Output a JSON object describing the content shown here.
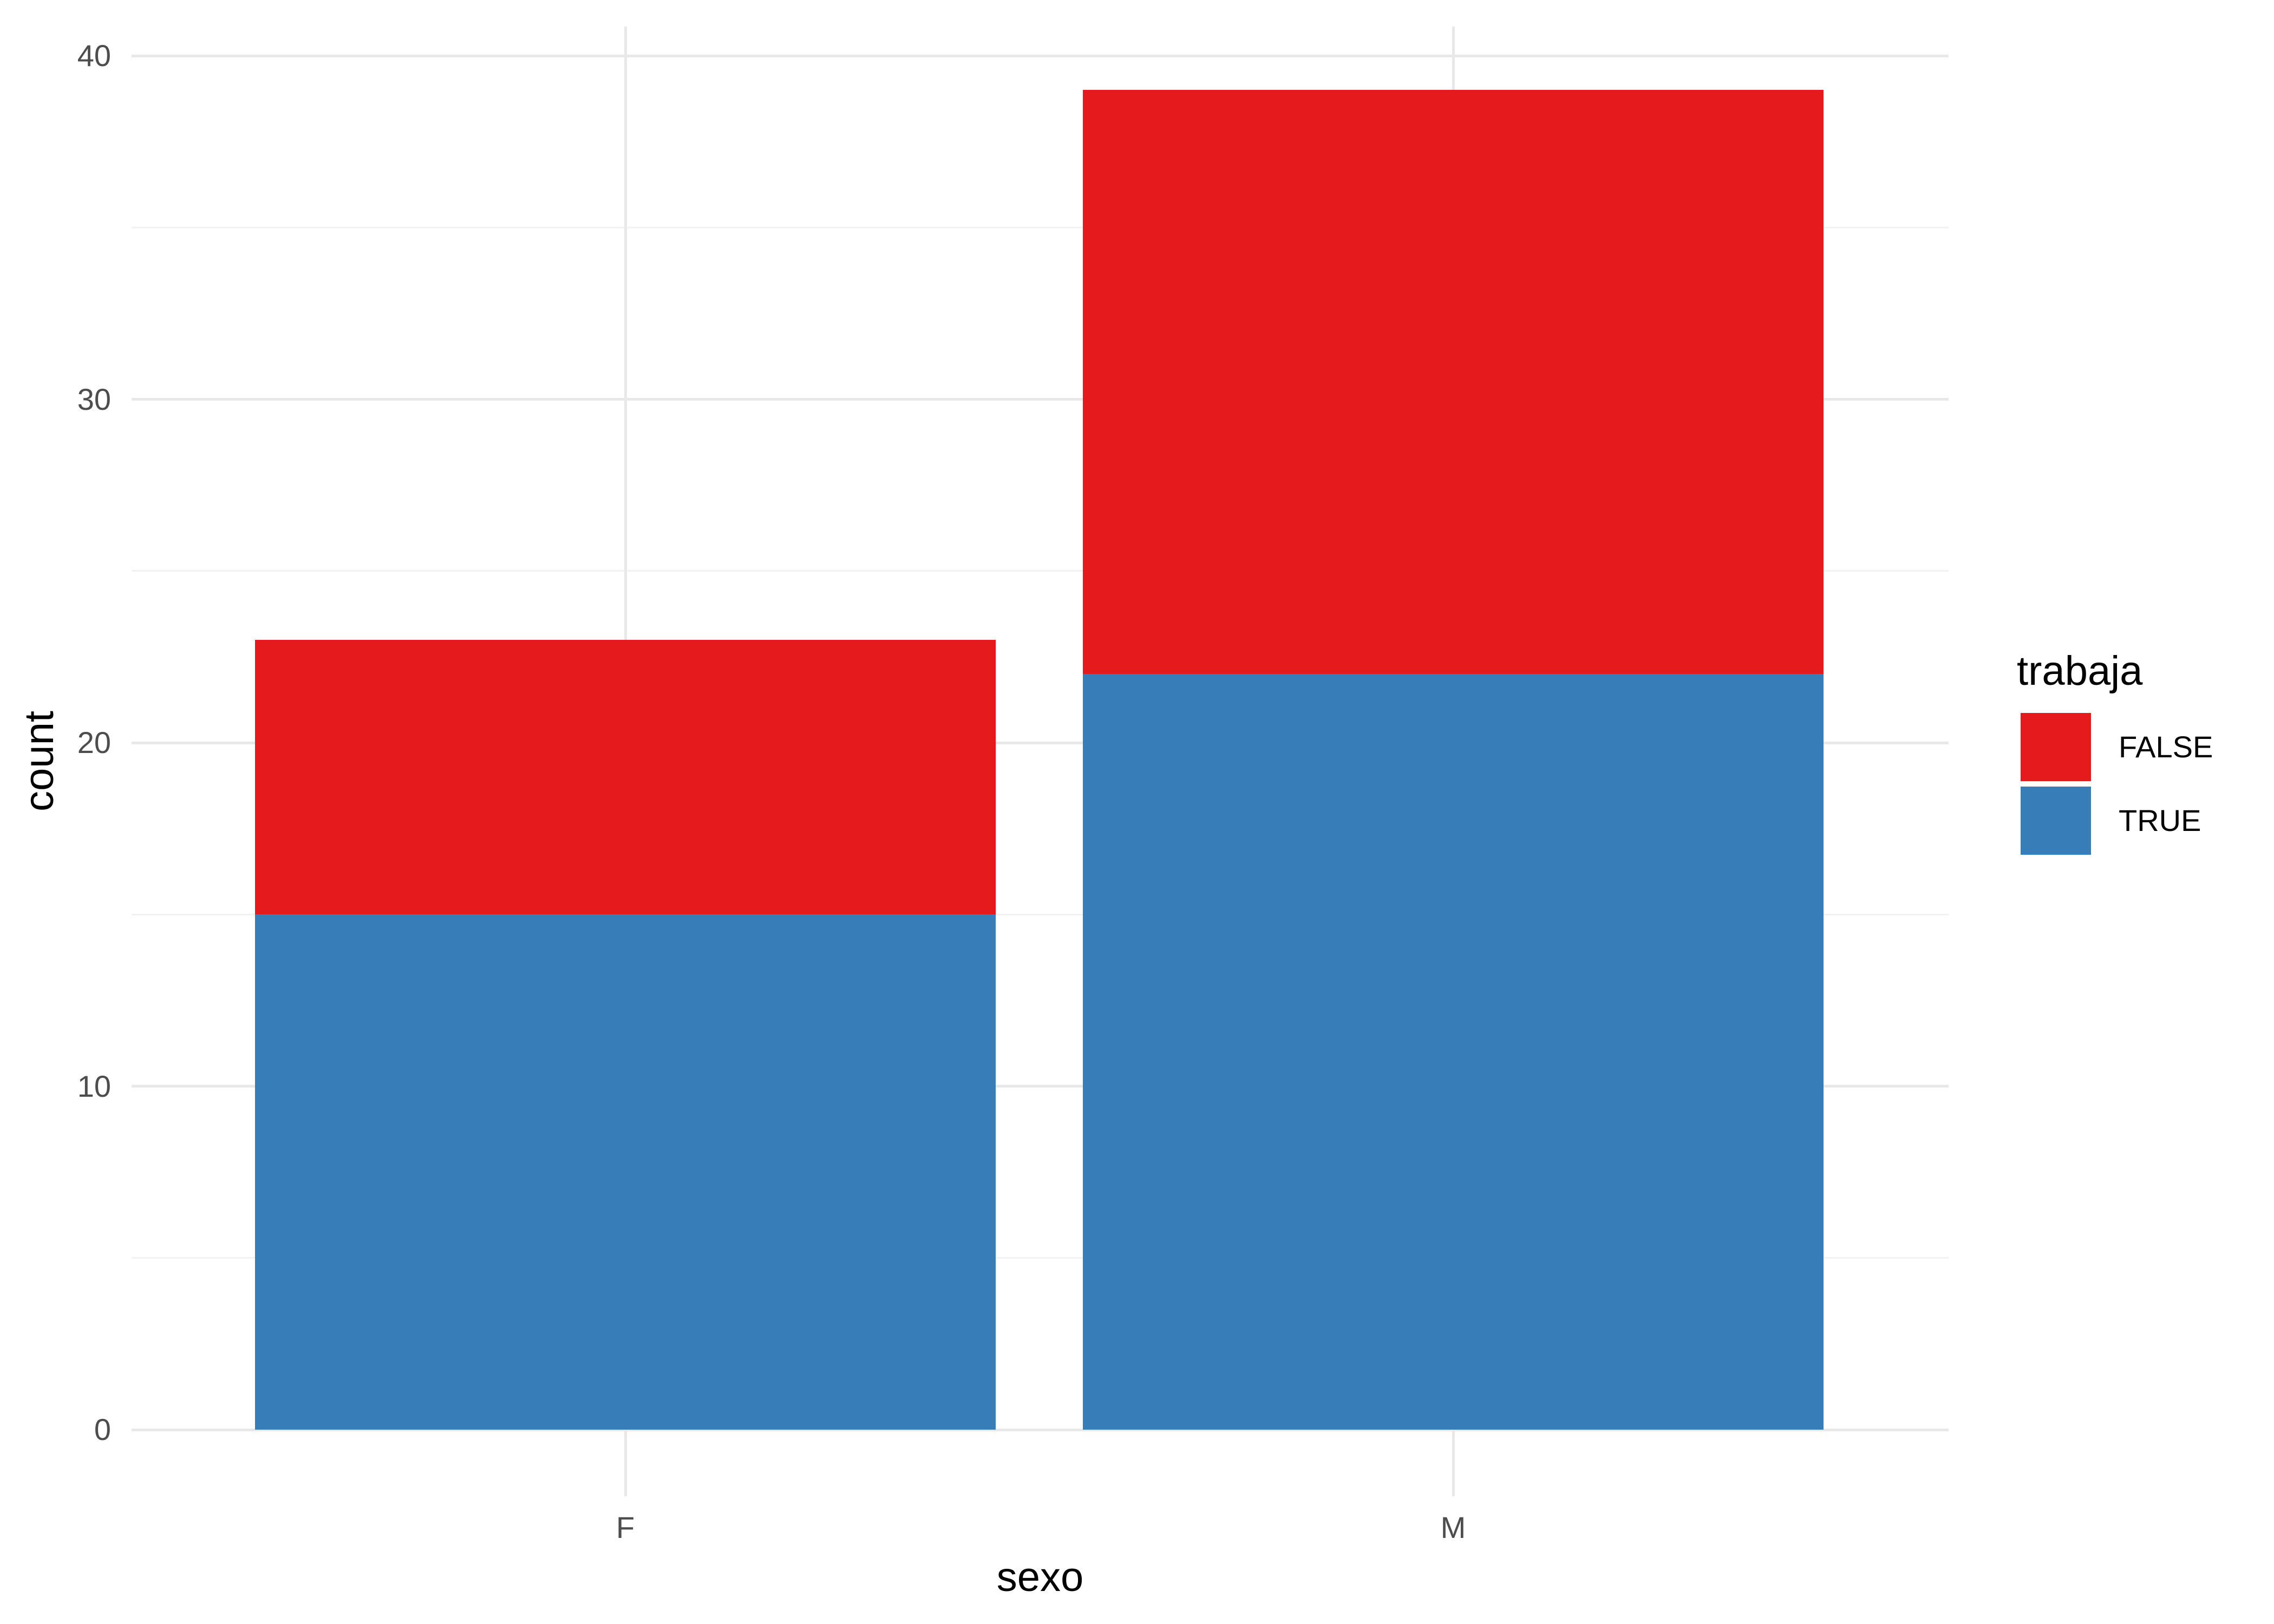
{
  "chart_data": {
    "type": "bar",
    "stacked": true,
    "title": "",
    "xlabel": "sexo",
    "ylabel": "count",
    "categories": [
      "F",
      "M"
    ],
    "series": [
      {
        "name": "FALSE",
        "values": [
          8,
          17
        ],
        "color": "#e41a1c"
      },
      {
        "name": "TRUE",
        "values": [
          15,
          22
        ],
        "color": "#377eb8"
      }
    ],
    "totals": [
      23,
      39
    ],
    "ylim": [
      0,
      40
    ],
    "y_major_ticks": [
      0,
      10,
      20,
      30,
      40
    ],
    "y_minor_ticks": [
      5,
      15,
      25,
      35
    ],
    "grid": "on",
    "legend": {
      "title": "trabaja",
      "position": "right",
      "entries": [
        {
          "label": "FALSE",
          "color": "#e41a1c"
        },
        {
          "label": "TRUE",
          "color": "#377eb8"
        }
      ]
    },
    "colors": {
      "grid_major": "#e8e8e8",
      "grid_minor": "#f2f2f2",
      "tick_text": "#4d4d4d",
      "title_text": "#000000",
      "background": "#ffffff"
    }
  }
}
